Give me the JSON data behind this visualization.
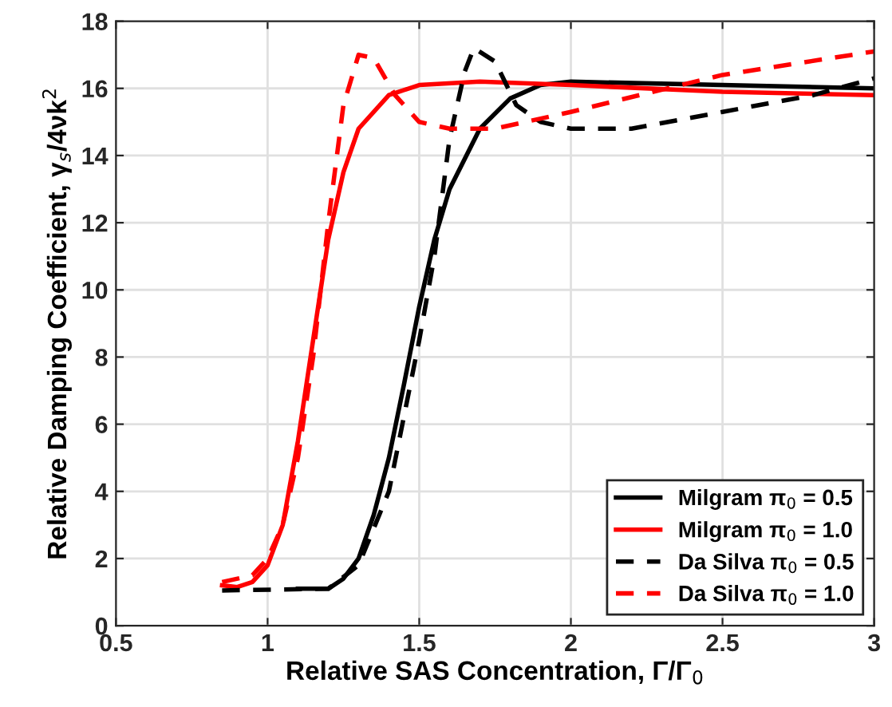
{
  "chart_data": {
    "type": "line",
    "xlabel": "Relative SAS Concentration, Γ/Γ$_{0}$",
    "ylabel": "Relative Damping Coefficient, γ$_{s}$/4νk$^{2}$",
    "xlim": [
      0.5,
      3
    ],
    "xticks": [
      0.5,
      1,
      1.5,
      2,
      2.5,
      3
    ],
    "ylim": [
      0,
      18
    ],
    "yticks": [
      0,
      2,
      4,
      6,
      8,
      10,
      12,
      14,
      16,
      18
    ],
    "grid": true,
    "legend": "bottom right",
    "series": [
      {
        "name": "Milgram π$_{0}$ = 0.5",
        "color": "#000000",
        "line_style": "solid",
        "x": [
          1.1,
          1.2,
          1.25,
          1.3,
          1.35,
          1.4,
          1.45,
          1.5,
          1.55,
          1.6,
          1.7,
          1.8,
          1.9,
          2.0,
          2.5,
          3.0
        ],
        "values": [
          1.1,
          1.1,
          1.4,
          2.0,
          3.3,
          5.0,
          7.2,
          9.5,
          11.5,
          13.0,
          14.8,
          15.7,
          16.1,
          16.2,
          16.1,
          16.0
        ]
      },
      {
        "name": "Milgram π$_{0}$ = 1.0",
        "color": "#ff0000",
        "line_style": "solid",
        "x": [
          0.85,
          0.9,
          0.95,
          1.0,
          1.05,
          1.1,
          1.15,
          1.2,
          1.25,
          1.3,
          1.4,
          1.5,
          1.7,
          2.0,
          2.5,
          3.0
        ],
        "values": [
          1.2,
          1.15,
          1.3,
          1.8,
          3.0,
          5.5,
          8.5,
          11.5,
          13.5,
          14.8,
          15.8,
          16.1,
          16.2,
          16.1,
          15.9,
          15.8
        ]
      },
      {
        "name": "Da Silva π$_{0}$ = 0.5",
        "color": "#000000",
        "line_style": "dashed",
        "x": [
          0.85,
          1.2,
          1.3,
          1.4,
          1.5,
          1.55,
          1.6,
          1.65,
          1.68,
          1.75,
          1.82,
          1.9,
          2.0,
          2.2,
          2.5,
          2.8,
          3.0
        ],
        "values": [
          1.05,
          1.1,
          1.8,
          4.0,
          8.5,
          11.0,
          14.5,
          16.5,
          17.2,
          16.8,
          15.5,
          15.0,
          14.8,
          14.8,
          15.3,
          15.8,
          16.3
        ]
      },
      {
        "name": "Da Silva π$_{0}$ = 1.0",
        "color": "#ff0000",
        "line_style": "dashed",
        "x": [
          0.85,
          0.95,
          1.0,
          1.05,
          1.1,
          1.15,
          1.2,
          1.25,
          1.3,
          1.35,
          1.42,
          1.5,
          1.6,
          1.75,
          2.0,
          2.5,
          3.0
        ],
        "values": [
          1.3,
          1.5,
          2.0,
          3.0,
          5.0,
          8.0,
          12.0,
          15.5,
          17.0,
          16.9,
          15.8,
          15.0,
          14.8,
          14.8,
          15.3,
          16.4,
          17.1
        ]
      }
    ]
  }
}
